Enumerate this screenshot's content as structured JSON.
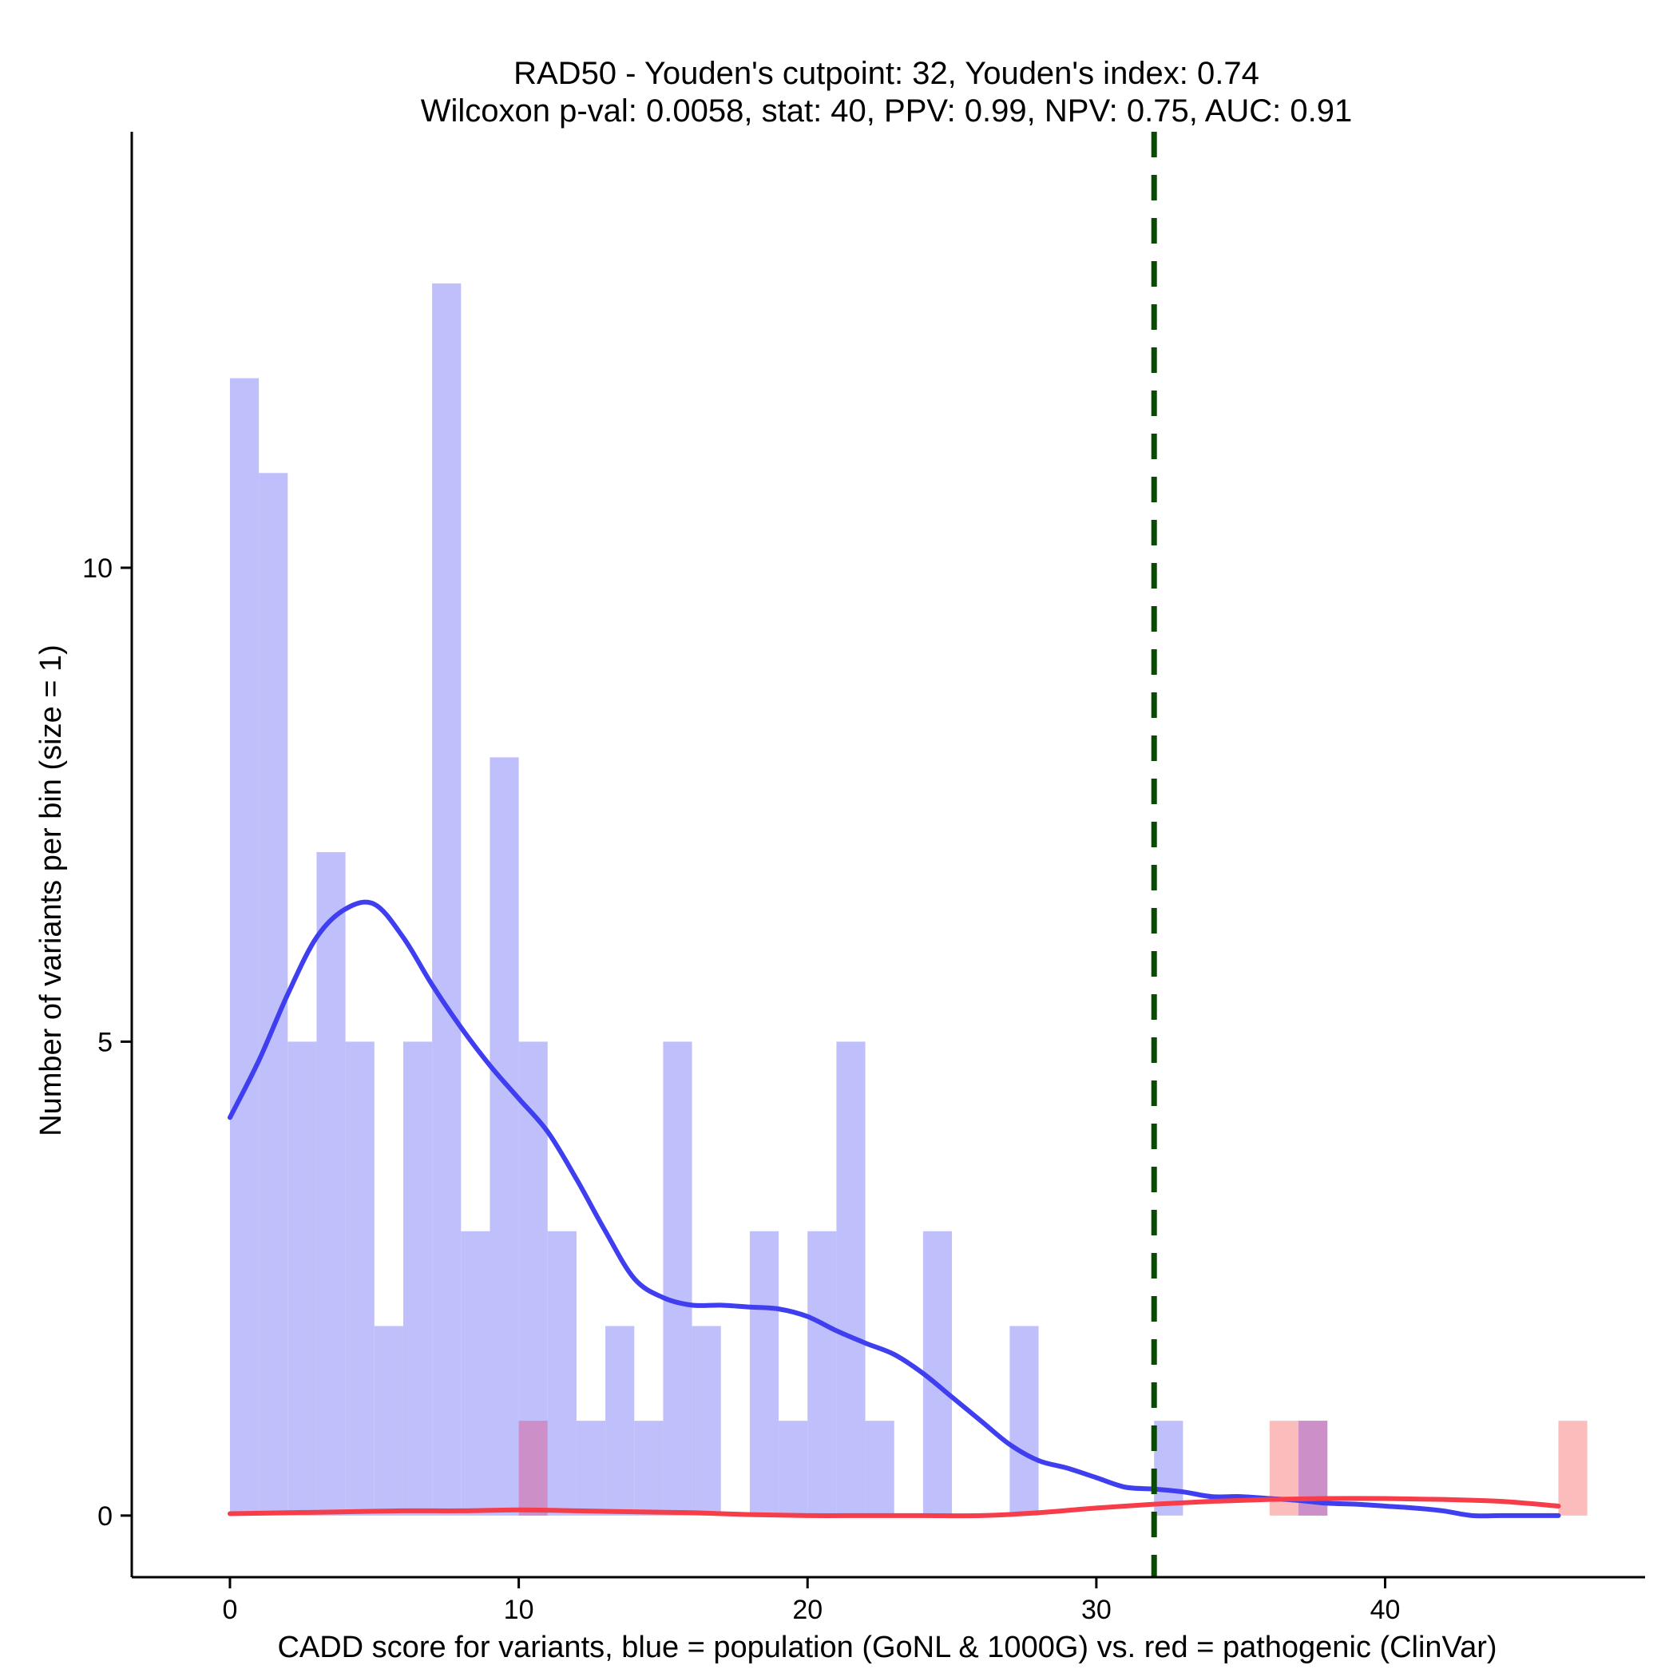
{
  "chart_data": {
    "type": "histogram",
    "title_line1": "RAD50 - Youden's cutpoint: 32, Youden's index: 0.74",
    "title_line2": "Wilcoxon p-val: 0.0058, stat: 40, PPV: 0.99, NPV: 0.75, AUC: 0.91",
    "xlabel": "CADD score for variants, blue = population (GoNL & 1000G) vs. red = pathogenic (ClinVar)",
    "ylabel": "Number of variants per bin (size = 1)",
    "xlim": [
      -3.4,
      49
    ],
    "ylim": [
      -0.65,
      14.6
    ],
    "x_ticks": [
      0,
      10,
      20,
      30,
      40
    ],
    "x_tick_labels": [
      "0",
      "10",
      "20",
      "30",
      "40"
    ],
    "y_ticks": [
      0,
      5,
      10
    ],
    "y_tick_labels": [
      "0",
      "5",
      "10"
    ],
    "bin_size": 1,
    "cutpoint": 32,
    "colors": {
      "population_bar": "#bfbffb",
      "pathogenic_bar": "#fbbcbc",
      "overlap_bar": "#cc8fc7",
      "population_line": "#3f3ff0",
      "pathogenic_line": "#f63d4a",
      "cutpoint_line": "#0b4a06"
    },
    "series": [
      {
        "name": "population (GoNL & 1000G)",
        "bins": [
          {
            "x": 0,
            "count": 12
          },
          {
            "x": 1,
            "count": 11
          },
          {
            "x": 2,
            "count": 5
          },
          {
            "x": 3,
            "count": 7
          },
          {
            "x": 4,
            "count": 5
          },
          {
            "x": 5,
            "count": 2
          },
          {
            "x": 6,
            "count": 5
          },
          {
            "x": 7,
            "count": 13
          },
          {
            "x": 8,
            "count": 3
          },
          {
            "x": 9,
            "count": 8
          },
          {
            "x": 10,
            "count": 5
          },
          {
            "x": 11,
            "count": 3
          },
          {
            "x": 12,
            "count": 1
          },
          {
            "x": 13,
            "count": 2
          },
          {
            "x": 14,
            "count": 1
          },
          {
            "x": 15,
            "count": 5
          },
          {
            "x": 16,
            "count": 2
          },
          {
            "x": 18,
            "count": 3
          },
          {
            "x": 19,
            "count": 1
          },
          {
            "x": 20,
            "count": 3
          },
          {
            "x": 21,
            "count": 5
          },
          {
            "x": 22,
            "count": 1
          },
          {
            "x": 24,
            "count": 3
          },
          {
            "x": 27,
            "count": 2
          },
          {
            "x": 32,
            "count": 1
          },
          {
            "x": 37,
            "count": 1
          }
        ]
      },
      {
        "name": "pathogenic (ClinVar)",
        "bins": [
          {
            "x": 10,
            "count": 1
          },
          {
            "x": 36,
            "count": 1
          },
          {
            "x": 37,
            "count": 1
          },
          {
            "x": 46,
            "count": 1
          }
        ]
      }
    ],
    "density_lines": [
      {
        "name": "population density",
        "x": [
          0,
          1,
          2,
          3,
          4,
          5,
          6,
          7,
          8,
          9,
          10,
          11,
          12,
          13,
          14,
          15,
          16,
          17,
          18,
          19,
          20,
          21,
          22,
          23,
          24,
          25,
          26,
          27,
          28,
          29,
          30,
          31,
          32,
          33,
          34,
          35,
          36,
          37,
          38,
          39,
          40,
          41,
          42,
          43,
          44,
          45,
          46
        ],
        "y": [
          4.2,
          4.8,
          5.5,
          6.1,
          6.4,
          6.45,
          6.1,
          5.6,
          5.15,
          4.75,
          4.4,
          4.05,
          3.55,
          3.0,
          2.5,
          2.3,
          2.22,
          2.22,
          2.2,
          2.18,
          2.1,
          1.95,
          1.82,
          1.7,
          1.5,
          1.25,
          1.0,
          0.75,
          0.58,
          0.5,
          0.4,
          0.3,
          0.28,
          0.25,
          0.2,
          0.2,
          0.18,
          0.16,
          0.13,
          0.12,
          0.1,
          0.08,
          0.05,
          0.0,
          0.0,
          0.0,
          0.0
        ]
      },
      {
        "name": "pathogenic density",
        "x": [
          0,
          2,
          4,
          6,
          8,
          10,
          12,
          14,
          16,
          18,
          20,
          22,
          24,
          26,
          28,
          30,
          32,
          34,
          36,
          38,
          40,
          42,
          44,
          46
        ],
        "y": [
          0.02,
          0.03,
          0.04,
          0.05,
          0.05,
          0.06,
          0.05,
          0.04,
          0.03,
          0.01,
          0.0,
          0.0,
          0.0,
          0.0,
          0.03,
          0.08,
          0.12,
          0.15,
          0.17,
          0.18,
          0.18,
          0.17,
          0.15,
          0.1
        ]
      }
    ]
  }
}
